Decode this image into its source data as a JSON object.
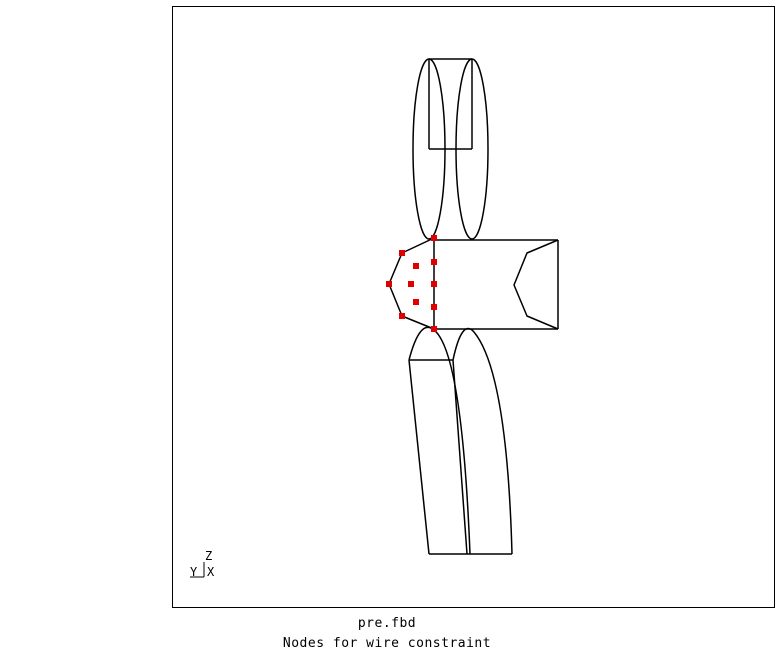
{
  "viewport": {
    "frame_color": "#000000",
    "line_color": "#000000",
    "node_color": "#e00000"
  },
  "axes": {
    "z_label": "Z",
    "y_label": "Y",
    "x_label": "X"
  },
  "caption": {
    "file": "pre.fbd",
    "description": "Nodes for wire constraint"
  }
}
